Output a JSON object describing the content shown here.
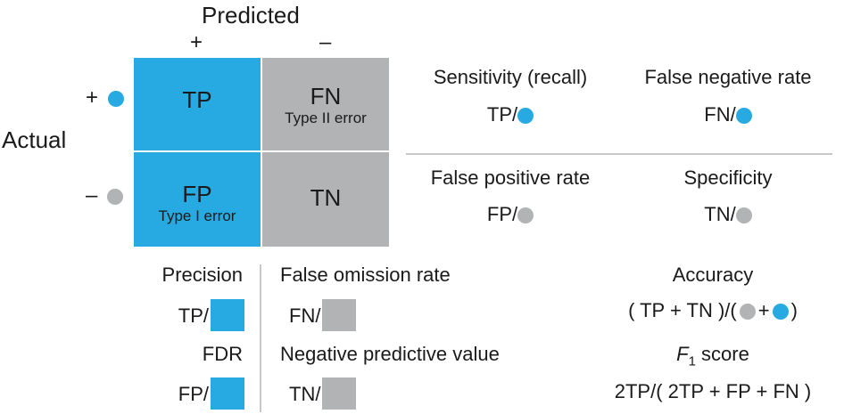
{
  "header": {
    "predicted": "Predicted",
    "pos_col": "+",
    "neg_col": "–"
  },
  "side": {
    "actual": "Actual",
    "pos_row": "+",
    "neg_row": "–"
  },
  "matrix": {
    "tp": {
      "label": "TP",
      "sub": ""
    },
    "fn": {
      "label": "FN",
      "sub": "Type II error"
    },
    "fp": {
      "label": "FP",
      "sub": "Type I error"
    },
    "tn": {
      "label": "TN",
      "sub": ""
    }
  },
  "right_metrics": {
    "sensitivity": {
      "title": "Sensitivity (recall)",
      "formula": "TP/"
    },
    "fnr": {
      "title": "False negative rate",
      "formula": "FN/"
    },
    "fpr": {
      "title": "False positive rate",
      "formula": "FP/"
    },
    "specificity": {
      "title": "Specificity",
      "formula": "TN/"
    }
  },
  "bottom_metrics": {
    "precision": {
      "title": "Precision",
      "formula": "TP/"
    },
    "fdr": {
      "title": "FDR",
      "formula": "FP/"
    },
    "for": {
      "title": "False omission rate",
      "formula": "FN/"
    },
    "npv": {
      "title": "Negative predictive value",
      "formula": "TN/"
    },
    "accuracy": {
      "title": "Accuracy",
      "formula_left": "( TP + TN )/(",
      "plus": "+",
      "close": ")"
    },
    "f1": {
      "title_f": "F",
      "title_sub": "1",
      "title_rest": " score",
      "formula": "2TP/( 2TP + FP + FN )"
    }
  },
  "colors": {
    "positive": "#27aae1",
    "negative": "#b1b3b5",
    "divider": "#c8c8c8"
  }
}
